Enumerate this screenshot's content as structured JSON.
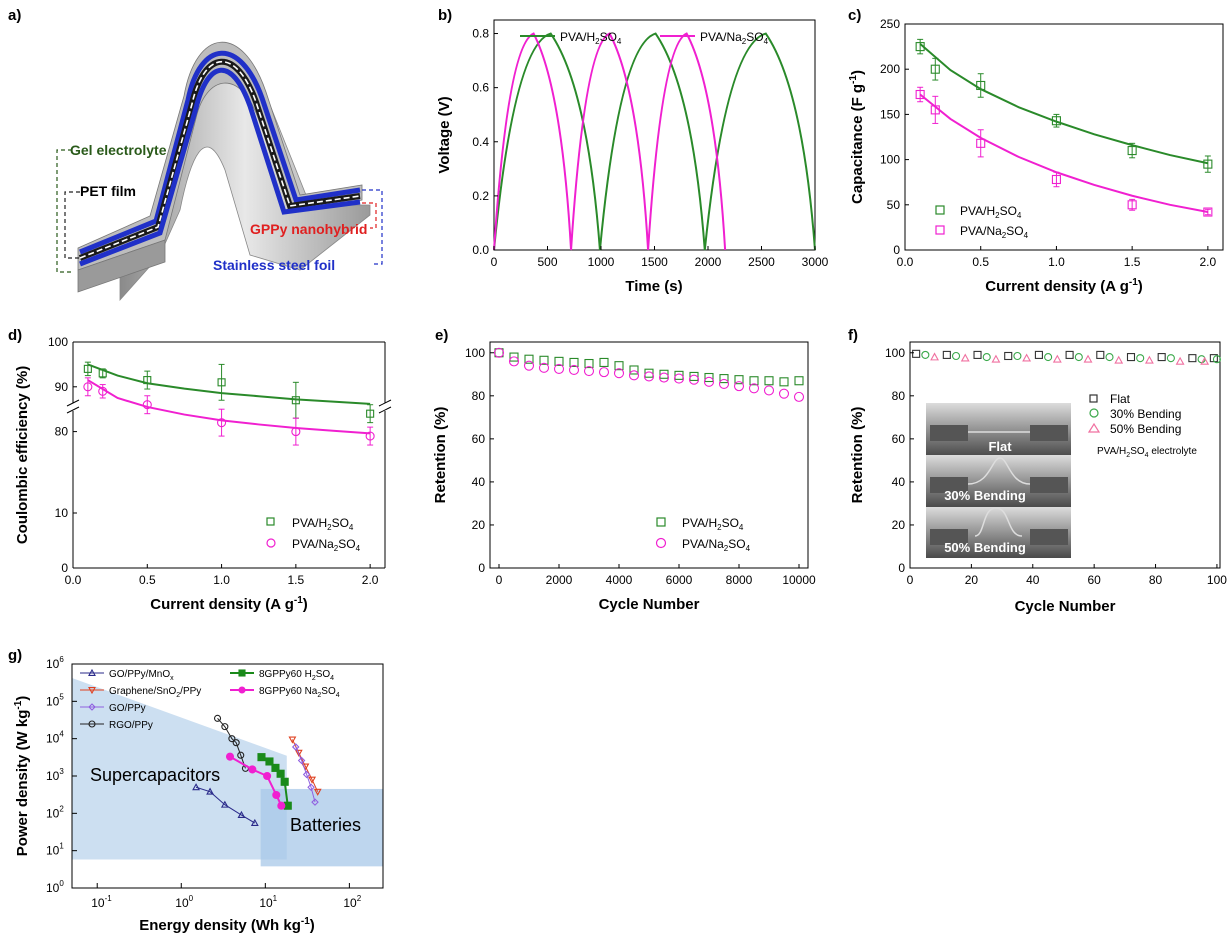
{
  "colors": {
    "h2so4": "#2a8a2a",
    "na2so4": "#f020d0",
    "flat": "#333333",
    "bend30": "#3aa84a",
    "bend50": "#f070a0",
    "go_ppy_mnox": "#2a2a8a",
    "graphene_sno2": "#e04020",
    "go_ppy": "#9060e0",
    "rgo_ppy": "#222222",
    "region_sc": "#c6dbef",
    "region_bat": "#a8c8e8",
    "foil": "#2030c8"
  },
  "diagram": {
    "panel_label": "a)",
    "labels": {
      "gel": "Gel electrolyte",
      "pet": "PET film",
      "gppy": "GPPy nanohybrid",
      "steel": "Stainless steel foil"
    }
  },
  "chart_data": [
    {
      "panel_label": "b)",
      "type": "line",
      "xlabel": "Time (s)",
      "ylabel": "Voltage (V)",
      "xlim": [
        0,
        3000
      ],
      "ylim": [
        0,
        0.85
      ],
      "xticks": [
        0,
        500,
        1000,
        1500,
        2000,
        2500,
        3000
      ],
      "yticks": [
        0.0,
        0.2,
        0.4,
        0.6,
        0.8
      ],
      "xtick_labels": [
        "0",
        "500",
        "1000",
        "1500",
        "2000",
        "2500",
        "3000"
      ],
      "ytick_labels": [
        "0.0",
        "0.2",
        "0.4",
        "0.6",
        "0.8"
      ],
      "legend_position": "top",
      "series": [
        {
          "name": "PVA/H2SO4",
          "legend_main": "PVA/H",
          "legend_sub": "2",
          "legend_tail": "SO",
          "legend_sub2": "4",
          "color": "#2a8a2a",
          "x": [
            0,
            530,
            990,
            1510,
            1970,
            2540,
            3000
          ],
          "y": [
            0,
            0.8,
            0,
            0.8,
            0,
            0.8,
            0
          ]
        },
        {
          "name": "PVA/Na2SO4",
          "legend_main": "PVA/Na",
          "legend_sub": "2",
          "legend_tail": "SO",
          "legend_sub2": "4",
          "color": "#f020d0",
          "x": [
            0,
            370,
            720,
            1080,
            1440,
            1800,
            2160
          ],
          "y": [
            0,
            0.8,
            0,
            0.8,
            0,
            0.8,
            0
          ]
        }
      ]
    },
    {
      "panel_label": "c)",
      "type": "scatter",
      "xlabel": "Current density (A g",
      "xlabel_sup": "-1",
      "xlabel_close": ")",
      "ylabel": "Capacitance (F g",
      "ylabel_sup": "-1",
      "ylabel_close": ")",
      "xlim": [
        0,
        2.1
      ],
      "ylim": [
        0,
        250
      ],
      "xticks": [
        0.0,
        0.5,
        1.0,
        1.5,
        2.0
      ],
      "yticks": [
        0,
        50,
        100,
        150,
        200,
        250
      ],
      "xtick_labels": [
        "0.0",
        "0.5",
        "1.0",
        "1.5",
        "2.0"
      ],
      "ytick_labels": [
        "0",
        "50",
        "100",
        "150",
        "200",
        "250"
      ],
      "legend_position": "bottom-left",
      "series": [
        {
          "name": "PVA/H2SO4",
          "legend_main": "PVA/H",
          "legend_sub": "2",
          "legend_tail": "SO",
          "legend_sub2": "4",
          "color": "#2a8a2a",
          "x": [
            0.1,
            0.2,
            0.5,
            1.0,
            1.5,
            2.0
          ],
          "y": [
            225,
            200,
            182,
            143,
            110,
            95
          ],
          "err": [
            8,
            12,
            13,
            7,
            8,
            9
          ],
          "fit": [
            [
              0.1,
              228
            ],
            [
              0.3,
              199
            ],
            [
              0.5,
              178
            ],
            [
              0.75,
              158
            ],
            [
              1.0,
              142
            ],
            [
              1.25,
              128
            ],
            [
              1.5,
              116
            ],
            [
              1.75,
              105
            ],
            [
              2.0,
              96
            ]
          ]
        },
        {
          "name": "PVA/Na2SO4",
          "legend_main": "PVA/Na",
          "legend_sub": "2",
          "legend_tail": "SO",
          "legend_sub2": "4",
          "color": "#f020d0",
          "x": [
            0.1,
            0.2,
            0.5,
            1.0,
            1.5,
            2.0
          ],
          "y": [
            172,
            155,
            118,
            78,
            50,
            42
          ],
          "err": [
            8,
            15,
            15,
            8,
            6,
            3
          ],
          "fit": [
            [
              0.1,
              172
            ],
            [
              0.3,
              145
            ],
            [
              0.5,
              124
            ],
            [
              0.75,
              103
            ],
            [
              1.0,
              86
            ],
            [
              1.25,
              72
            ],
            [
              1.5,
              60
            ],
            [
              1.75,
              50
            ],
            [
              2.0,
              42
            ]
          ]
        }
      ]
    },
    {
      "panel_label": "d)",
      "type": "scatter",
      "xlabel": "Current density (A g",
      "xlabel_sup": "-1",
      "xlabel_close": ")",
      "ylabel": "Coulombic efficiency (%)",
      "xlim": [
        0,
        2.1
      ],
      "axis_break": true,
      "lower_ylim": [
        0,
        20
      ],
      "upper_ylim": [
        75,
        100
      ],
      "yticks_lower": [
        0,
        10
      ],
      "yticks_upper": [
        80,
        90,
        100
      ],
      "xticks": [
        0.0,
        0.5,
        1.0,
        1.5,
        2.0
      ],
      "xtick_labels": [
        "0.0",
        "0.5",
        "1.0",
        "1.5",
        "2.0"
      ],
      "ytick_labels_lower": [
        "0",
        "10"
      ],
      "ytick_labels_upper": [
        "80",
        "90",
        "100"
      ],
      "legend_position": "bottom-right",
      "series": [
        {
          "name": "PVA/H2SO4",
          "legend_main": "PVA/H",
          "legend_sub": "2",
          "legend_tail": "SO",
          "legend_sub2": "4",
          "color": "#2a8a2a",
          "x": [
            0.1,
            0.2,
            0.5,
            1.0,
            1.5,
            2.0
          ],
          "y": [
            94,
            93,
            91.5,
            91,
            87,
            84
          ],
          "err": [
            1.5,
            1,
            2,
            4,
            4,
            2
          ],
          "fit": [
            [
              0.1,
              95
            ],
            [
              0.3,
              92.5
            ],
            [
              0.5,
              90.8
            ],
            [
              0.75,
              89.6
            ],
            [
              1.0,
              88.6
            ],
            [
              1.25,
              87.9
            ],
            [
              1.5,
              87.2
            ],
            [
              1.75,
              86.7
            ],
            [
              2.0,
              86.2
            ]
          ]
        },
        {
          "name": "PVA/Na2SO4",
          "legend_main": "PVA/Na",
          "legend_sub": "2",
          "legend_tail": "SO",
          "legend_sub2": "4",
          "color": "#f020d0",
          "x": [
            0.1,
            0.2,
            0.5,
            1.0,
            1.5,
            2.0
          ],
          "y": [
            90,
            89,
            86,
            82,
            80,
            79
          ],
          "err": [
            2,
            1.5,
            2,
            3,
            3,
            2
          ],
          "fit": [
            [
              0.1,
              91.5
            ],
            [
              0.3,
              87.5
            ],
            [
              0.5,
              85.5
            ],
            [
              0.75,
              83.8
            ],
            [
              1.0,
              82.5
            ],
            [
              1.25,
              81.6
            ],
            [
              1.5,
              80.8
            ],
            [
              1.75,
              80.2
            ],
            [
              2.0,
              79.6
            ]
          ]
        }
      ]
    },
    {
      "panel_label": "e)",
      "type": "scatter",
      "xlabel": "Cycle Number",
      "ylabel": "Retention (%)",
      "xlim": [
        -300,
        10300
      ],
      "ylim": [
        0,
        105
      ],
      "xticks": [
        0,
        2000,
        4000,
        6000,
        8000,
        10000
      ],
      "yticks": [
        0,
        20,
        40,
        60,
        80,
        100
      ],
      "xtick_labels": [
        "0",
        "2000",
        "4000",
        "6000",
        "8000",
        "10000"
      ],
      "ytick_labels": [
        "0",
        "20",
        "40",
        "60",
        "80",
        "100"
      ],
      "legend_position": "bottom-right",
      "series": [
        {
          "name": "PVA/H2SO4",
          "legend_main": "PVA/H",
          "legend_sub": "2",
          "legend_tail": "SO",
          "legend_sub2": "4",
          "color": "#2a8a2a",
          "marker": "square",
          "x": [
            0,
            500,
            1000,
            1500,
            2000,
            2500,
            3000,
            3500,
            4000,
            4500,
            5000,
            5500,
            6000,
            6500,
            7000,
            7500,
            8000,
            8500,
            9000,
            9500,
            10000
          ],
          "y": [
            100,
            98,
            97,
            96.5,
            96,
            95.5,
            95,
            95.5,
            94,
            92,
            90.5,
            90,
            89.5,
            89,
            88.5,
            88,
            87.5,
            87,
            87,
            86.5,
            87
          ]
        },
        {
          "name": "PVA/Na2SO4",
          "legend_main": "PVA/Na",
          "legend_sub": "2",
          "legend_tail": "SO",
          "legend_sub2": "4",
          "color": "#f020d0",
          "marker": "circle",
          "x": [
            0,
            500,
            1000,
            1500,
            2000,
            2500,
            3000,
            3500,
            4000,
            4500,
            5000,
            5500,
            6000,
            6500,
            7000,
            7500,
            8000,
            8500,
            9000,
            9500,
            10000
          ],
          "y": [
            100,
            96,
            94,
            93,
            92.5,
            92,
            91.5,
            91,
            90.5,
            89.5,
            89,
            88.5,
            88,
            87.5,
            86.5,
            85.5,
            84.5,
            83.5,
            82.5,
            81,
            79.5
          ]
        }
      ]
    },
    {
      "panel_label": "f)",
      "type": "scatter",
      "xlabel": "Cycle Number",
      "ylabel": "Retention (%)",
      "xlim": [
        0,
        101
      ],
      "ylim": [
        0,
        105
      ],
      "xticks": [
        0,
        20,
        40,
        60,
        80,
        100
      ],
      "yticks": [
        0,
        20,
        40,
        60,
        80,
        100
      ],
      "xtick_labels": [
        "0",
        "20",
        "40",
        "60",
        "80",
        "100"
      ],
      "ytick_labels": [
        "0",
        "20",
        "40",
        "60",
        "80",
        "100"
      ],
      "legend_position": "right",
      "electrolyte_note": {
        "main": "PVA/H",
        "sub": "2",
        "tail": "SO",
        "sub2": "4",
        "rest": " electrolyte"
      },
      "photo_labels": [
        "Flat",
        "30% Bending",
        "50% Bending"
      ],
      "series": [
        {
          "name": "Flat",
          "color": "#333333",
          "marker": "square",
          "x": [
            2,
            12,
            22,
            32,
            42,
            52,
            62,
            72,
            82,
            92,
            99
          ],
          "y": [
            99.5,
            99,
            99,
            98.5,
            99,
            99,
            99,
            98,
            98,
            97.5,
            97.5
          ]
        },
        {
          "name": "30% Bending",
          "color": "#3aa84a",
          "marker": "circle",
          "x": [
            5,
            15,
            25,
            35,
            45,
            55,
            65,
            75,
            85,
            95,
            100
          ],
          "y": [
            99,
            98.5,
            98,
            98.5,
            98,
            98,
            98,
            97.5,
            97.5,
            97,
            97
          ]
        },
        {
          "name": "50% Bending",
          "color": "#f070a0",
          "marker": "triangle",
          "x": [
            8,
            18,
            28,
            38,
            48,
            58,
            68,
            78,
            88,
            96
          ],
          "y": [
            98,
            97.5,
            97,
            97.5,
            97,
            97,
            96.5,
            96.5,
            96,
            96
          ]
        }
      ]
    },
    {
      "panel_label": "g)",
      "type": "line",
      "xlabel": "Energy density (Wh kg",
      "xlabel_sup": "-1",
      "xlabel_close": ")",
      "ylabel": "Power density (W kg",
      "ylabel_sup": "-1",
      "ylabel_close": ")",
      "xscale": "log",
      "yscale": "log",
      "xlim_log10": [
        -1.3,
        2.4
      ],
      "ylim_log10": [
        0,
        6
      ],
      "xticks_log10": [
        -1,
        0,
        1,
        2
      ],
      "yticks_log10": [
        0,
        1,
        2,
        3,
        4,
        5,
        6
      ],
      "xtick_bases": [
        "10",
        "10",
        "10",
        "10"
      ],
      "xtick_exps": [
        "-1",
        "0",
        "1",
        "2"
      ],
      "ytick_bases": [
        "10",
        "10",
        "10",
        "10",
        "10",
        "10",
        "10"
      ],
      "ytick_exps": [
        "0",
        "1",
        "2",
        "3",
        "4",
        "5",
        "6"
      ],
      "region_labels": [
        "Supercapacitors",
        "Batteries"
      ],
      "series": [
        {
          "name": "GO/PPy/MnOx",
          "legend_main": "GO/PPy/MnO",
          "legend_sub": "x",
          "color": "#2a2a8a",
          "marker": "triangle",
          "x": [
            1.5,
            2.2,
            3.3,
            5.2,
            7.5
          ],
          "y": [
            500,
            380,
            170,
            90,
            55
          ]
        },
        {
          "name": "Graphene/SnO2/PPy",
          "legend_main": "Graphene/SnO",
          "legend_sub": "2",
          "legend_tail": "/PPy",
          "color": "#e04020",
          "marker": "triangle-down",
          "x": [
            21,
            25,
            30,
            36,
            42
          ],
          "y": [
            9500,
            4200,
            1800,
            800,
            380
          ]
        },
        {
          "name": "GO/PPy",
          "legend_main": "GO/PPy",
          "color": "#9060e0",
          "marker": "diamond",
          "x": [
            23,
            27,
            31,
            35,
            39
          ],
          "y": [
            6000,
            2600,
            1100,
            500,
            200
          ]
        },
        {
          "name": "RGO/PPy",
          "legend_main": "RGO/PPy",
          "color": "#222222",
          "marker": "circle",
          "x": [
            2.7,
            3.3,
            4.0,
            4.5,
            5.1,
            5.8
          ],
          "y": [
            35000,
            21000,
            10000,
            7800,
            3600,
            1600
          ]
        },
        {
          "name": "8GPPy60 H2SO4",
          "legend_main": "8GPPy60 H",
          "legend_sub": "2",
          "legend_tail": "SO",
          "legend_sub2": "4",
          "color": "#1a8a1a",
          "marker": "filled-square",
          "x": [
            9.0,
            11.2,
            13.2,
            15.2,
            17.0,
            18.5
          ],
          "y": [
            3200,
            2450,
            1650,
            1150,
            700,
            160
          ]
        },
        {
          "name": "8GPPy60 Na2SO4",
          "legend_main": "8GPPy60 Na",
          "legend_sub": "2",
          "legend_tail": "SO",
          "legend_sub2": "4",
          "color": "#f020d0",
          "marker": "filled-circle",
          "x": [
            3.8,
            7.0,
            10.5,
            13.5,
            15.5
          ],
          "y": [
            3300,
            1500,
            1000,
            310,
            160
          ]
        }
      ]
    }
  ]
}
